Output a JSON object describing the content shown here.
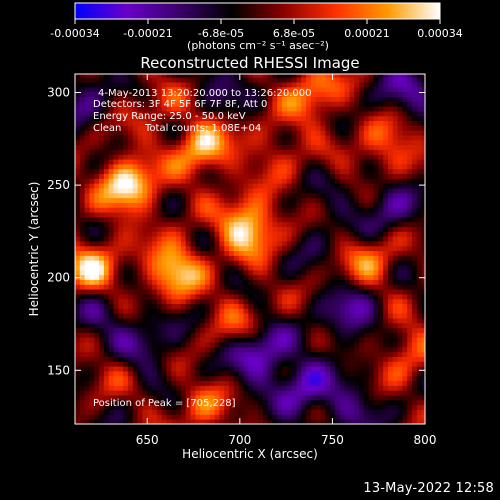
{
  "chart_data": {
    "type": "heatmap",
    "title": "Reconstructed RHESSI Image",
    "xlabel": "Heliocentric X (arcsec)",
    "ylabel": "Heliocentric Y (arcsec)",
    "xlim": [
      611,
      800
    ],
    "ylim": [
      121,
      310
    ],
    "x_ticks": [
      650,
      700,
      750,
      800
    ],
    "y_ticks": [
      150,
      200,
      250,
      300
    ],
    "colorbar": {
      "min": -0.00034,
      "max": 0.00034,
      "tick_labels": [
        "-0.00034",
        "-0.00021",
        "-6.8e-05",
        "6.8e-05",
        "0.00021",
        "0.00034"
      ],
      "unit_label": "(photons cm⁻² s⁻¹ asec⁻²)",
      "colors": [
        "#0000ff",
        "#6a00c8",
        "#3a006a",
        "#000000",
        "#8a0000",
        "#ff3000",
        "#ff9a00",
        "#ffffff"
      ]
    },
    "annotations": {
      "time_range": "4-May-2013 13:20:20.000 to 13:26:20.000",
      "detectors": "Detectors: 3F 4F 5F 6F 7F 8F, Att 0",
      "energy_range": "Energy Range: 25.0 - 50.0 keV",
      "method": "Clean",
      "total_counts": "Total counts: 1.08E+04",
      "peak": "Position of Peak = [705,228]"
    },
    "peak": [
      705,
      228
    ],
    "hotspots": [
      {
        "x": 640,
        "y": 250,
        "intensity": 0.00034
      },
      {
        "x": 705,
        "y": 228,
        "intensity": 0.00034
      },
      {
        "x": 680,
        "y": 270,
        "intensity": 0.00028
      },
      {
        "x": 665,
        "y": 205,
        "intensity": 0.0003
      },
      {
        "x": 620,
        "y": 205,
        "intensity": 0.00026
      },
      {
        "x": 740,
        "y": 300,
        "intensity": 0.00022
      },
      {
        "x": 780,
        "y": 270,
        "intensity": 0.0002
      },
      {
        "x": 770,
        "y": 210,
        "intensity": 0.00018
      },
      {
        "x": 790,
        "y": 160,
        "intensity": 0.00016
      },
      {
        "x": 700,
        "y": 175,
        "intensity": 0.00015
      },
      {
        "x": 720,
        "y": 270,
        "intensity": 0.00012
      },
      {
        "x": 680,
        "y": 130,
        "intensity": 0.00014
      },
      {
        "x": 655,
        "y": 295,
        "intensity": 0.0001
      },
      {
        "x": 630,
        "y": 150,
        "intensity": 6e-05
      }
    ],
    "coldspots": [
      {
        "x": 710,
        "y": 160,
        "intensity": -0.00028
      },
      {
        "x": 735,
        "y": 140,
        "intensity": -0.00022
      },
      {
        "x": 780,
        "y": 240,
        "intensity": -0.00018
      },
      {
        "x": 790,
        "y": 300,
        "intensity": -0.00016
      },
      {
        "x": 760,
        "y": 180,
        "intensity": -0.00018
      },
      {
        "x": 615,
        "y": 300,
        "intensity": -0.00014
      },
      {
        "x": 625,
        "y": 180,
        "intensity": -0.00012
      },
      {
        "x": 650,
        "y": 165,
        "intensity": -0.00014
      },
      {
        "x": 690,
        "y": 305,
        "intensity": -0.0001
      },
      {
        "x": 760,
        "y": 130,
        "intensity": -0.00012
      },
      {
        "x": 745,
        "y": 225,
        "intensity": -8e-05
      }
    ]
  },
  "footer": {
    "datetime": "13-May-2022 12:58"
  }
}
